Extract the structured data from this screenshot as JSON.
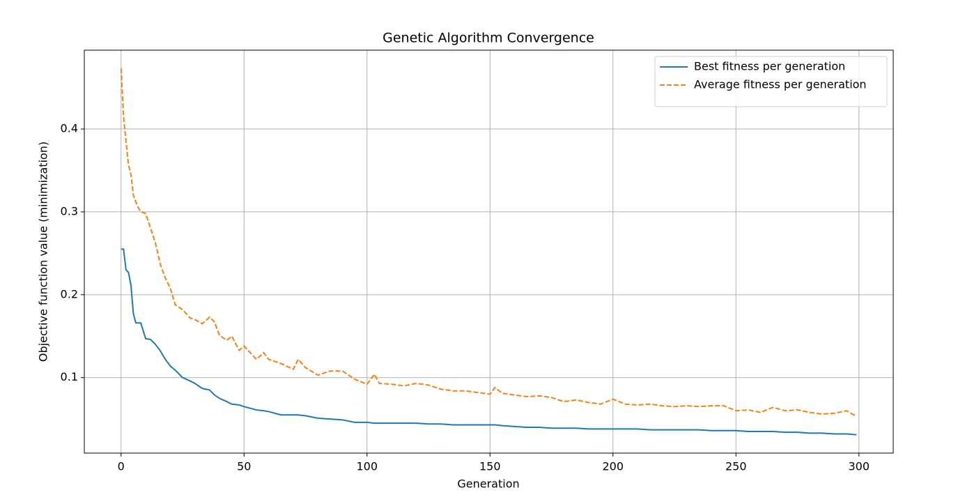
{
  "chart_data": {
    "type": "line",
    "title": "Genetic Algorithm Convergence",
    "xlabel": "Generation",
    "ylabel": "Objective function value (minimization)",
    "x": [
      0,
      1,
      2,
      3,
      4,
      5,
      6,
      7,
      8,
      10,
      12,
      14,
      16,
      18,
      20,
      22,
      25,
      28,
      30,
      33,
      36,
      38,
      40,
      43,
      45,
      48,
      50,
      55,
      58,
      60,
      65,
      70,
      72,
      75,
      80,
      85,
      90,
      95,
      100,
      103,
      105,
      110,
      115,
      120,
      125,
      130,
      135,
      140,
      145,
      150,
      152,
      155,
      160,
      165,
      170,
      175,
      180,
      185,
      190,
      195,
      200,
      205,
      210,
      215,
      220,
      225,
      230,
      235,
      240,
      245,
      250,
      255,
      260,
      265,
      270,
      275,
      280,
      285,
      290,
      295,
      299
    ],
    "series": [
      {
        "name": "Best fitness per generation",
        "color": "#1f77b4",
        "linestyle": "solid",
        "values": [
          0.255,
          0.255,
          0.23,
          0.227,
          0.212,
          0.177,
          0.166,
          0.166,
          0.166,
          0.147,
          0.146,
          0.14,
          0.132,
          0.122,
          0.114,
          0.109,
          0.1,
          0.096,
          0.093,
          0.087,
          0.085,
          0.079,
          0.075,
          0.071,
          0.068,
          0.067,
          0.065,
          0.061,
          0.06,
          0.059,
          0.055,
          0.055,
          0.055,
          0.054,
          0.051,
          0.05,
          0.049,
          0.046,
          0.046,
          0.045,
          0.045,
          0.045,
          0.045,
          0.045,
          0.044,
          0.044,
          0.043,
          0.043,
          0.043,
          0.043,
          0.043,
          0.042,
          0.041,
          0.04,
          0.04,
          0.039,
          0.039,
          0.039,
          0.038,
          0.038,
          0.038,
          0.038,
          0.038,
          0.037,
          0.037,
          0.037,
          0.037,
          0.037,
          0.036,
          0.036,
          0.036,
          0.035,
          0.035,
          0.035,
          0.034,
          0.034,
          0.033,
          0.033,
          0.032,
          0.032,
          0.031
        ]
      },
      {
        "name": "Average fitness per generation",
        "color": "#ff7f0e",
        "linestyle": "dashed",
        "values": [
          0.473,
          0.415,
          0.385,
          0.357,
          0.345,
          0.32,
          0.312,
          0.305,
          0.3,
          0.298,
          0.28,
          0.262,
          0.236,
          0.22,
          0.208,
          0.188,
          0.182,
          0.172,
          0.17,
          0.165,
          0.173,
          0.167,
          0.151,
          0.145,
          0.15,
          0.133,
          0.138,
          0.122,
          0.13,
          0.122,
          0.117,
          0.11,
          0.122,
          0.112,
          0.103,
          0.108,
          0.108,
          0.098,
          0.092,
          0.104,
          0.093,
          0.092,
          0.09,
          0.093,
          0.091,
          0.086,
          0.084,
          0.084,
          0.082,
          0.08,
          0.088,
          0.081,
          0.079,
          0.077,
          0.078,
          0.076,
          0.071,
          0.073,
          0.07,
          0.068,
          0.074,
          0.068,
          0.067,
          0.068,
          0.066,
          0.065,
          0.066,
          0.065,
          0.066,
          0.066,
          0.06,
          0.061,
          0.058,
          0.064,
          0.06,
          0.061,
          0.058,
          0.056,
          0.057,
          0.06,
          0.053
        ]
      }
    ],
    "xlim": [
      -14.95,
      313.95
    ],
    "ylim": [
      0.0089,
      0.4951
    ],
    "xticks": [
      0,
      50,
      100,
      150,
      200,
      250,
      300
    ],
    "yticks": [
      0.1,
      0.2,
      0.3,
      0.4
    ],
    "grid": true,
    "legend": "upper-right"
  }
}
